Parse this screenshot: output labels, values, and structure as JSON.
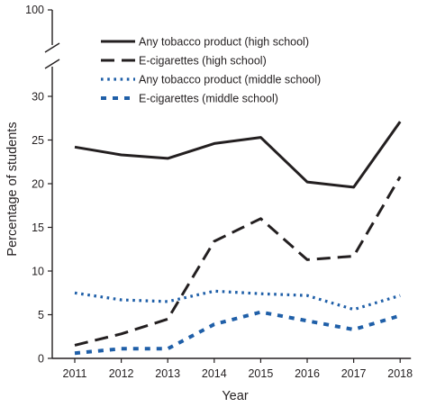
{
  "chart_data": {
    "type": "line",
    "xlabel": "Year",
    "ylabel": "Percentage of students",
    "x": [
      2011,
      2012,
      2013,
      2014,
      2015,
      2016,
      2017,
      2018
    ],
    "x_tick_labels": [
      "2011",
      "2012",
      "2013",
      "2014",
      "2015",
      "2016",
      "2017",
      "2018"
    ],
    "ylim": [
      0,
      30
    ],
    "y_ticks": [
      0,
      5,
      10,
      15,
      20,
      25,
      30
    ],
    "y_tick_labels": [
      "0",
      "5",
      "10",
      "15",
      "20",
      "25",
      "30"
    ],
    "y_break_top_label": "100",
    "axis_break": true,
    "grid": false,
    "legend_position": "top-right",
    "series": [
      {
        "name": "Any tobacco product (high school)",
        "style": "solid",
        "color": "#231f20",
        "values": [
          24.2,
          23.3,
          22.9,
          24.6,
          25.3,
          20.2,
          19.6,
          27.1
        ]
      },
      {
        "name": "E-cigarettes (high school)",
        "style": "dashed",
        "color": "#231f20",
        "values": [
          1.5,
          2.8,
          4.5,
          13.4,
          16.0,
          11.3,
          11.7,
          20.8
        ]
      },
      {
        "name": "Any tobacco product (middle school)",
        "style": "dotted",
        "color": "#1f5fa8",
        "values": [
          7.5,
          6.7,
          6.5,
          7.7,
          7.4,
          7.2,
          5.6,
          7.2
        ]
      },
      {
        "name": "E-cigarettes (middle school)",
        "style": "dashed-short",
        "color": "#1f5fa8",
        "values": [
          0.6,
          1.1,
          1.1,
          3.9,
          5.3,
          4.3,
          3.3,
          4.9
        ]
      }
    ]
  }
}
